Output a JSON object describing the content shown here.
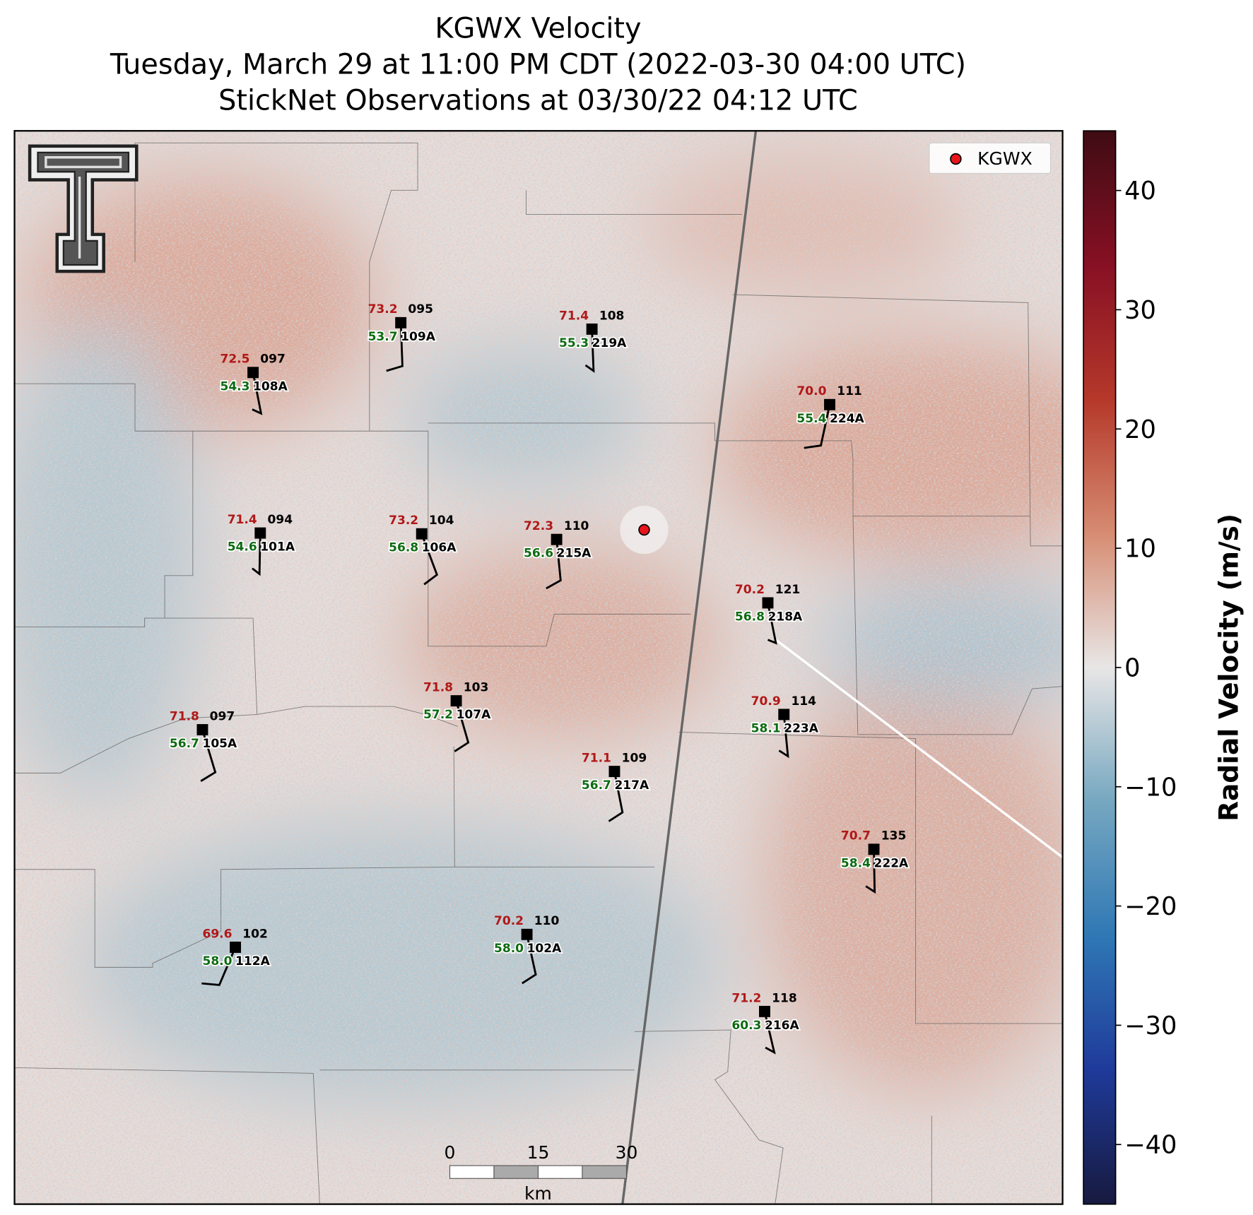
{
  "title": [
    "KGWX Velocity",
    "Tuesday, March 29 at 11:00 PM CDT (2022-03-30 04:00 UTC)",
    "StickNet Observations at 03/30/22 04:12 UTC"
  ],
  "legend": {
    "label": "KGWX",
    "color": "#e8141c"
  },
  "colorbar": {
    "label": "Radial Velocity (m/s)",
    "lim": [
      -45,
      45
    ],
    "ticks": [
      {
        "value": -40,
        "label": "−40"
      },
      {
        "value": -30,
        "label": "−30"
      },
      {
        "value": -20,
        "label": "−20"
      },
      {
        "value": -10,
        "label": "−10"
      },
      0,
      10,
      20,
      30,
      40
    ],
    "colors": [
      "#171a3f",
      "#1f3a9a",
      "#2f78b5",
      "#76a7c0",
      "#e8e6e6",
      "#d68c72",
      "#b5382a",
      "#871024",
      "#3f0c14"
    ]
  },
  "scale_bar": {
    "ticks": [
      0,
      15,
      30
    ],
    "unit": "km"
  },
  "stations": [
    {
      "id": "109A",
      "temp": "73.2",
      "dew": "53.7",
      "code": "095"
    },
    {
      "id": "108A",
      "temp": "72.5",
      "dew": "54.3",
      "code": "097"
    },
    {
      "id": "219A",
      "temp": "71.4",
      "dew": "55.3",
      "code": "108"
    },
    {
      "id": "224A",
      "temp": "70.0",
      "dew": "55.4",
      "code": "111"
    },
    {
      "id": "101A",
      "temp": "71.4",
      "dew": "54.6",
      "code": "094"
    },
    {
      "id": "106A",
      "temp": "73.2",
      "dew": "56.8",
      "code": "104"
    },
    {
      "id": "215A",
      "temp": "72.3",
      "dew": "56.6",
      "code": "110"
    },
    {
      "id": "218A",
      "temp": "70.2",
      "dew": "56.8",
      "code": "121"
    },
    {
      "id": "107A",
      "temp": "71.8",
      "dew": "57.2",
      "code": "103"
    },
    {
      "id": "105A",
      "temp": "71.8",
      "dew": "56.7",
      "code": "097"
    },
    {
      "id": "223A",
      "temp": "70.9",
      "dew": "58.1",
      "code": "114"
    },
    {
      "id": "217A",
      "temp": "71.1",
      "dew": "56.7",
      "code": "109"
    },
    {
      "id": "222A",
      "temp": "70.7",
      "dew": "58.4",
      "code": "135"
    },
    {
      "id": "112A",
      "temp": "69.6",
      "dew": "58.0",
      "code": "102"
    },
    {
      "id": "102A",
      "temp": "70.2",
      "dew": "58.0",
      "code": "110"
    },
    {
      "id": "216A",
      "temp": "71.2",
      "dew": "60.3",
      "code": "118"
    }
  ]
}
